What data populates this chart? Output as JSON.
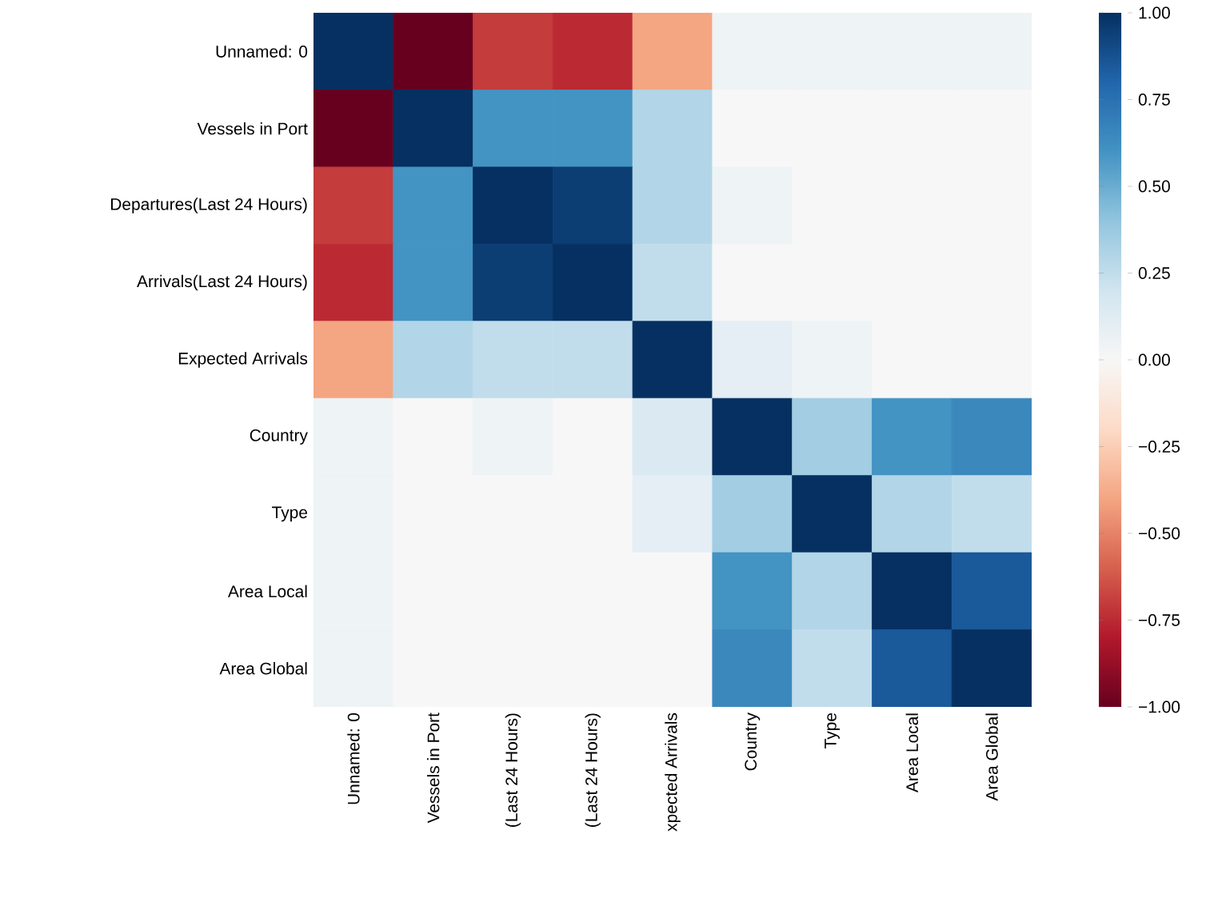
{
  "chart_data": {
    "type": "heatmap",
    "categories": [
      "Unnamed: 0",
      "Vessels in Port",
      "(Last 24 Hours)",
      "(Last 24 Hours)",
      "xpected Arrivals",
      "Country",
      "Type",
      "Area Local",
      "Area Global"
    ],
    "y_categories": [
      "Unnamed: 0",
      "Vessels in Port",
      "Departures(Last 24 Hours)",
      "Arrivals(Last 24 Hours)",
      "Expected Arrivals",
      "Country",
      "Type",
      "Area Local",
      "Area Global"
    ],
    "cells": [
      [
        1,
        -1,
        -0.7,
        -0.75,
        -0.4,
        0.05,
        0.05,
        0.05,
        0.05
      ],
      [
        -1,
        1,
        0.6,
        0.6,
        0.3,
        0,
        0,
        0,
        0
      ],
      [
        -0.7,
        0.6,
        1,
        0.95,
        0.3,
        0.05,
        0,
        0,
        0
      ],
      [
        -0.75,
        0.6,
        0.95,
        1,
        0.25,
        0,
        0,
        0,
        0
      ],
      [
        -0.4,
        0.3,
        0.25,
        0.25,
        1,
        0.1,
        0.05,
        0,
        0
      ],
      [
        0.05,
        0,
        0.05,
        0,
        0.15,
        1,
        0.35,
        0.6,
        0.65
      ],
      [
        0.05,
        0,
        0,
        0,
        0.1,
        0.35,
        1,
        0.3,
        0.25
      ],
      [
        0.05,
        0,
        0,
        0,
        0,
        0.6,
        0.3,
        1,
        0.85
      ],
      [
        0.05,
        0,
        0,
        0,
        0,
        0.65,
        0.25,
        0.85,
        1
      ]
    ],
    "clim": [
      -1,
      1
    ],
    "cticks": [
      {
        "value": 1,
        "label": "1.00"
      },
      {
        "value": 0.75,
        "label": "0.75"
      },
      {
        "value": 0.5,
        "label": "0.50"
      },
      {
        "value": 0.25,
        "label": "0.25"
      },
      {
        "value": 0,
        "label": "0.00"
      },
      {
        "value": -0.25,
        "label": "−0.25"
      },
      {
        "value": -0.5,
        "label": "−0.50"
      },
      {
        "value": -0.75,
        "label": "−0.75"
      },
      {
        "value": -1,
        "label": "−1.00"
      }
    ]
  }
}
